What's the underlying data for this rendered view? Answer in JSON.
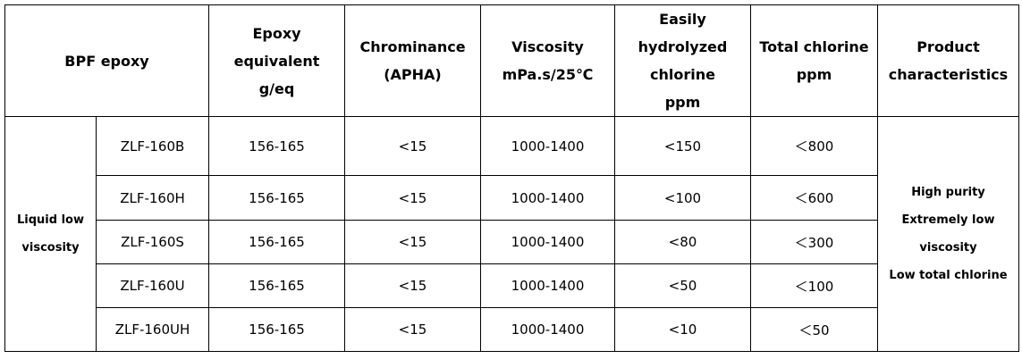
{
  "table": {
    "header": [
      [
        "BPF epoxy"
      ],
      [
        "Epoxy",
        "equivalent",
        "g/eq"
      ],
      [
        "Chrominance",
        "(APHA)"
      ],
      [
        "Viscosity",
        "mPa.s/25℃"
      ],
      [
        "Easily",
        "hydrolyzed",
        "chlorine",
        "ppm"
      ],
      [
        "Total chlorine",
        "ppm"
      ],
      [
        "Product",
        "characteristics"
      ]
    ],
    "group": [
      "Liquid low",
      "viscosity"
    ],
    "rows": [
      [
        "ZLF-160B",
        "156-165",
        "<15",
        "1000-1400",
        "<150",
        "＜800"
      ],
      [
        "ZLF-160H",
        "156-165",
        "<15",
        "1000-1400",
        "<100",
        "＜600"
      ],
      [
        "ZLF-160S",
        "156-165",
        "<15",
        "1000-1400",
        "<80",
        "＜300"
      ],
      [
        "ZLF-160U",
        "156-165",
        "<15",
        "1000-1400",
        "<50",
        "＜100"
      ],
      [
        "ZLF-160UH",
        "156-165",
        "<15",
        "1000-1400",
        "<10",
        "＜50"
      ]
    ],
    "characteristics": [
      "High purity",
      "Extremely low",
      "viscosity",
      "Low total chlorine"
    ]
  }
}
